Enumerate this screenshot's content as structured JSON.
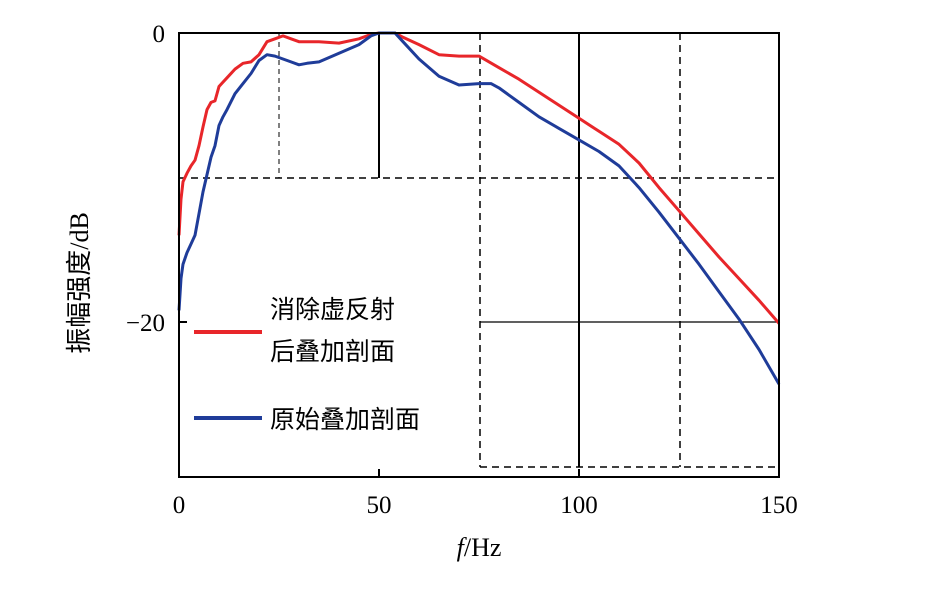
{
  "chart_data": {
    "type": "line",
    "xlabel_italic": "f",
    "xlabel_unit": "/Hz",
    "ylabel": "振幅强度/dB",
    "xlim": [
      0,
      150
    ],
    "ylim": [
      -31,
      0
    ],
    "xticks": [
      0,
      50,
      100,
      150
    ],
    "xtick_labels": [
      "0",
      "50",
      "100",
      "150"
    ],
    "yticks": [
      0,
      -20
    ],
    "ytick_labels": [
      "0",
      "−20"
    ],
    "grid": false,
    "legend_position": "center-left",
    "series": [
      {
        "name": "消除虚反射后叠加剖面",
        "legend_lines": [
          "消除虚反射",
          "后叠加剖面"
        ],
        "color": "#e8262a",
        "x": [
          0,
          0.5,
          1,
          2,
          3,
          4,
          5,
          6,
          7,
          8,
          9,
          10,
          11,
          12,
          14,
          16,
          18,
          20,
          22,
          24,
          26,
          28,
          30,
          35,
          40,
          45,
          48,
          50,
          52,
          54,
          56,
          60,
          65,
          70,
          75,
          80,
          85,
          90,
          95,
          100,
          105,
          110,
          115,
          120,
          125,
          130,
          135,
          140,
          145,
          150
        ],
        "y": [
          -14.0,
          -11.5,
          -10.3,
          -9.7,
          -9.2,
          -8.8,
          -7.8,
          -6.5,
          -5.3,
          -4.8,
          -4.7,
          -3.7,
          -3.4,
          -3.1,
          -2.5,
          -2.1,
          -2.0,
          -1.5,
          -0.6,
          -0.4,
          -0.2,
          -0.4,
          -0.6,
          -0.6,
          -0.7,
          -0.4,
          -0.1,
          0.0,
          0.0,
          0.0,
          -0.3,
          -0.8,
          -1.5,
          -1.6,
          -1.6,
          -2.4,
          -3.2,
          -4.1,
          -5.0,
          -5.9,
          -6.8,
          -7.7,
          -9.0,
          -10.7,
          -12.3,
          -13.9,
          -15.5,
          -17.0,
          -18.5,
          -20.1
        ]
      },
      {
        "name": "原始叠加剖面",
        "legend_lines": [
          "原始叠加剖面"
        ],
        "color": "#1f3c99",
        "x": [
          0,
          0.5,
          1,
          2,
          3,
          4,
          5,
          6,
          7,
          8,
          9,
          10,
          11,
          12,
          14,
          16,
          18,
          20,
          22,
          24,
          26,
          28,
          30,
          32,
          35,
          40,
          45,
          48,
          50,
          52,
          54,
          56,
          60,
          65,
          70,
          75,
          78,
          80,
          85,
          90,
          95,
          100,
          105,
          110,
          115,
          120,
          125,
          130,
          135,
          140,
          145,
          150
        ],
        "y": [
          -19.2,
          -17.0,
          -16.0,
          -15.2,
          -14.6,
          -14.0,
          -12.5,
          -11.0,
          -9.8,
          -8.6,
          -7.8,
          -6.4,
          -5.8,
          -5.3,
          -4.2,
          -3.5,
          -2.8,
          -1.9,
          -1.5,
          -1.6,
          -1.8,
          -2.0,
          -2.2,
          -2.1,
          -2.0,
          -1.4,
          -0.8,
          -0.2,
          0.0,
          0.0,
          0.0,
          -0.6,
          -1.8,
          -3.0,
          -3.6,
          -3.5,
          -3.5,
          -3.8,
          -4.8,
          -5.8,
          -6.6,
          -7.4,
          -8.2,
          -9.2,
          -10.7,
          -12.4,
          -14.2,
          -16.0,
          -17.9,
          -19.8,
          -21.9,
          -24.3
        ]
      }
    ]
  }
}
